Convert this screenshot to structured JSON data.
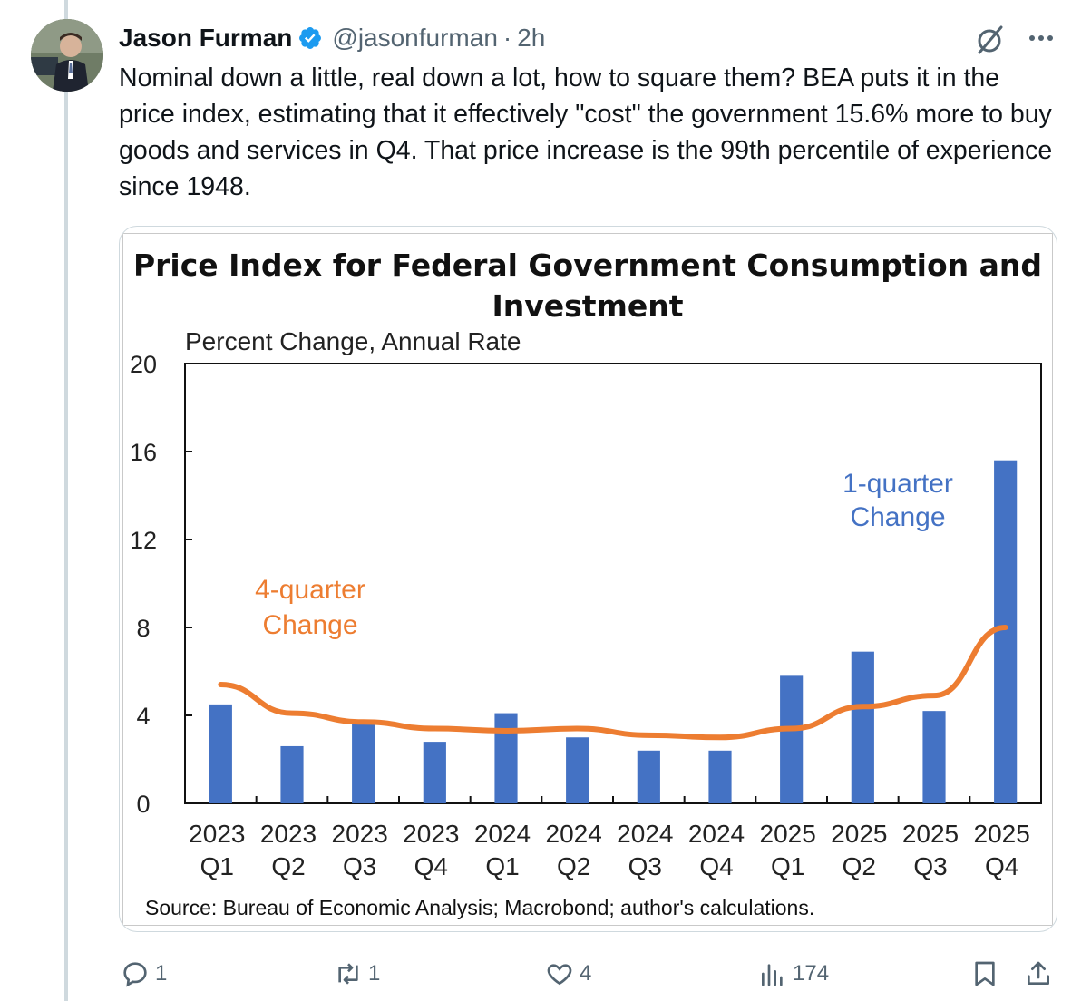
{
  "tweet": {
    "author_name": "Jason Furman",
    "handle": "@jasonfurman",
    "separator": "·",
    "time": "2h",
    "text": "Nominal down a little, real down a lot, how to square them? BEA puts it in the price index, estimating that it effectively \"cost\" the government 15.6% more to buy goods and services in Q4. That price increase is the 99th percentile of experience since 1948."
  },
  "icons": {
    "verified": "verified-badge-icon",
    "grok": "grok-icon",
    "more": "more-icon",
    "reply": "reply-icon",
    "retweet": "retweet-icon",
    "like": "like-icon",
    "views": "views-icon",
    "bookmark": "bookmark-icon",
    "share": "share-icon"
  },
  "colors": {
    "accent": "#1d9bf0",
    "bar": "#4472c4",
    "line": "#ed7d31",
    "secondary_text": "#536471"
  },
  "actions": {
    "replies": "1",
    "retweets": "1",
    "likes": "4",
    "views": "174"
  },
  "chart_data": {
    "type": "bar",
    "title": "Price Index for Federal Government Consumption and Investment",
    "subtitle": "Percent Change, Annual Rate",
    "ylim": [
      0,
      20
    ],
    "yticks": [
      0,
      4,
      8,
      12,
      16,
      20
    ],
    "categories": [
      [
        "2023",
        "Q1"
      ],
      [
        "2023",
        "Q2"
      ],
      [
        "2023",
        "Q3"
      ],
      [
        "2023",
        "Q4"
      ],
      [
        "2024",
        "Q1"
      ],
      [
        "2024",
        "Q2"
      ],
      [
        "2024",
        "Q3"
      ],
      [
        "2024",
        "Q4"
      ],
      [
        "2025",
        "Q1"
      ],
      [
        "2025",
        "Q2"
      ],
      [
        "2025",
        "Q3"
      ],
      [
        "2025",
        "Q4"
      ]
    ],
    "series": [
      {
        "name": "1-quarter Change",
        "type": "bar",
        "label_lines": [
          "1-quarter",
          "Change"
        ],
        "values": [
          4.5,
          2.6,
          3.7,
          2.8,
          4.1,
          3.0,
          2.4,
          2.4,
          5.8,
          6.9,
          4.2,
          15.6
        ]
      },
      {
        "name": "4-quarter Change",
        "type": "line",
        "label_lines": [
          "4-quarter",
          "Change"
        ],
        "values": [
          5.4,
          4.1,
          3.7,
          3.4,
          3.3,
          3.4,
          3.1,
          3.0,
          3.4,
          4.4,
          4.9,
          8.0
        ]
      }
    ],
    "source": "Source: Bureau of Economic Analysis; Macrobond; author's calculations."
  }
}
